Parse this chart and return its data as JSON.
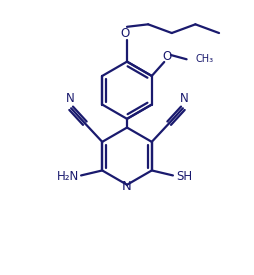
{
  "bg_color": "#ffffff",
  "line_color": "#1a1a6e",
  "line_width": 1.6,
  "font_size": 8.5,
  "figsize": [
    2.54,
    2.75
  ],
  "dpi": 100,
  "xlim": [
    0,
    10
  ],
  "ylim": [
    0,
    11
  ]
}
